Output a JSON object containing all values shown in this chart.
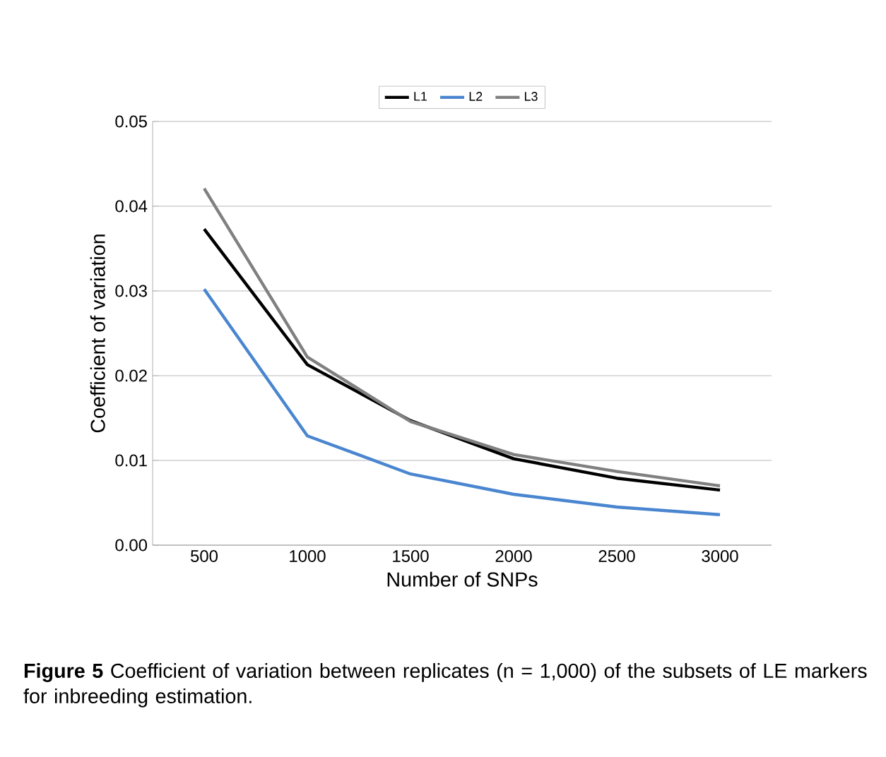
{
  "chart_data": {
    "type": "line",
    "ylabel": "Coefficient of variation",
    "xlabel": "Number of SNPs",
    "categories": [
      "500",
      "1000",
      "1500",
      "2000",
      "2500",
      "3000"
    ],
    "series": [
      {
        "name": "L1",
        "color": "#000000",
        "values": [
          0.0373,
          0.0213,
          0.0147,
          0.0102,
          0.0079,
          0.0065
        ]
      },
      {
        "name": "L2",
        "color": "#4a86d0",
        "values": [
          0.0302,
          0.0129,
          0.0084,
          0.006,
          0.0045,
          0.0036
        ]
      },
      {
        "name": "L3",
        "color": "#808080",
        "values": [
          0.0421,
          0.0222,
          0.0146,
          0.0107,
          0.0087,
          0.007
        ]
      }
    ],
    "ylim": [
      0,
      0.05
    ],
    "yticks": [
      {
        "value": 0,
        "label": "0.00"
      },
      {
        "value": 0.01,
        "label": "0.01"
      },
      {
        "value": 0.02,
        "label": "0.02"
      },
      {
        "value": 0.03,
        "label": "0.03"
      },
      {
        "value": 0.04,
        "label": "0.04"
      },
      {
        "value": 0.05,
        "label": "0.05"
      }
    ],
    "grid": "y",
    "legend": "top",
    "marker": "none",
    "line_style": "solid",
    "annotations": [
      "**Figure 5** Coefficient of variation between replicates (n = 1,000) of the subsets of LE markers for inbreeding estimation."
    ]
  }
}
